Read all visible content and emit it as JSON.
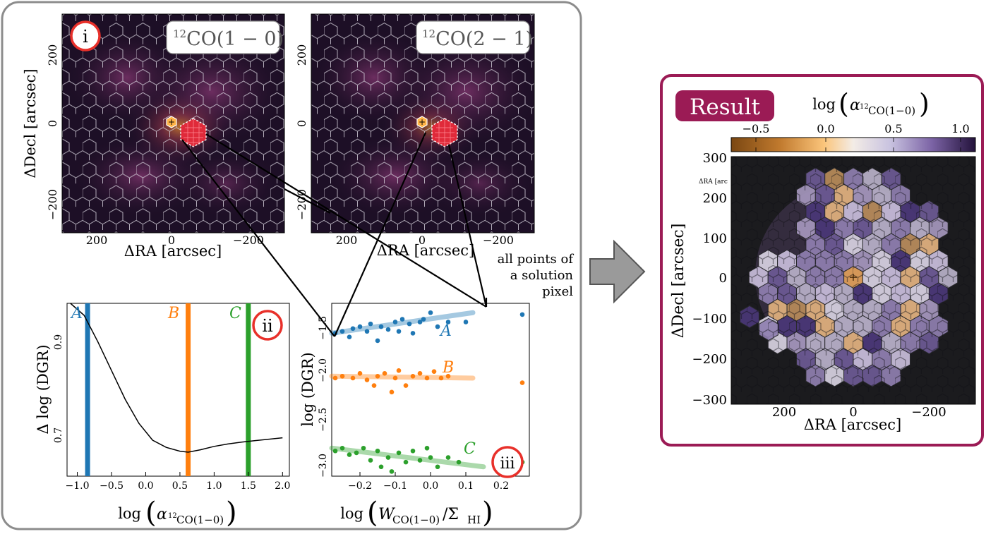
{
  "panels": {
    "co10": {
      "badge": "i",
      "label_sup": "12",
      "label_main": "CO(1 − 0)",
      "xlabel": "ΔRA [arcsec]",
      "ylabel": "ΔDecl [arcsec]",
      "xticks": [
        "200",
        "0",
        "−200"
      ],
      "yticks": [
        "200",
        "0",
        "−200"
      ]
    },
    "co21": {
      "label_sup": "12",
      "label_main": "CO(2 − 1)",
      "xlabel": "ΔRA [arcsec]",
      "xticks": [
        "200",
        "0",
        "−200"
      ],
      "yticks": [
        "200",
        "0",
        "−200"
      ]
    },
    "dgr_curve": {
      "badge": "ii",
      "ylabel": "Δ log (DGR)",
      "xlabel_pre": "log",
      "xlabel_sym": "α",
      "xlabel_sub_sup": "12",
      "xlabel_sub": "CO(1−0)",
      "xticks": [
        "−1.0",
        "−0.5",
        "0.0",
        "0.5",
        "1.0",
        "1.5",
        "2.0"
      ],
      "yticks": [
        "0.9",
        "0.7"
      ],
      "markers": [
        {
          "name": "A",
          "x": -0.85,
          "color": "#1f77b4"
        },
        {
          "name": "B",
          "x": 0.62,
          "color": "#ff7f0e"
        },
        {
          "name": "C",
          "x": 1.5,
          "color": "#2ca02c"
        }
      ]
    },
    "dgr_scatter": {
      "badge": "iii",
      "ylabel": "log (DGR)",
      "xlabel_pre": "log",
      "xlabel_w": "W",
      "xlabel_wsub": "CO(1−0)",
      "xlabel_slash": "/Σ",
      "xlabel_sigsub": "HI",
      "xticks": [
        "−0.2",
        "−0.1",
        "0.0",
        "0.1",
        "0.2"
      ],
      "yticks": [
        "−1.5",
        "−2.0",
        "−2.5",
        "−3.0"
      ],
      "annotation": [
        "all points of",
        "a solution",
        "pixel"
      ]
    },
    "result": {
      "title": "Result",
      "cbar_label_pre": "log",
      "cbar_label_sym": "α",
      "cbar_label_sup": "12",
      "cbar_label_sub": "CO(1−0)",
      "cbar_ticks": [
        "−0.5",
        "0.0",
        "0.5",
        "1.0"
      ],
      "xlabel": "ΔRA [arcsec]",
      "ylabel": "ΔDecl [arcsec]",
      "xticks": [
        "200",
        "0",
        "−200"
      ],
      "yticks": [
        "300",
        "200",
        "100",
        "0",
        "−100",
        "−200",
        "−300"
      ],
      "stray_label": "ΔRA [arc"
    }
  },
  "colors": {
    "frame_gray": "#8c8c8c",
    "result_frame": "#9b1b55",
    "badge_red": "#e8302a",
    "series_a": "#1f77b4",
    "series_b": "#ff7f0e",
    "series_c": "#2ca02c"
  },
  "chart_data": [
    {
      "type": "line",
      "panel": "ii",
      "x": [
        -1.1,
        -0.9,
        -0.7,
        -0.5,
        -0.3,
        -0.1,
        0.1,
        0.3,
        0.5,
        0.62,
        0.8,
        1.0,
        1.2,
        1.4,
        1.6,
        1.8,
        2.0
      ],
      "y": [
        0.96,
        0.935,
        0.88,
        0.82,
        0.76,
        0.71,
        0.675,
        0.66,
        0.652,
        0.65,
        0.655,
        0.662,
        0.667,
        0.671,
        0.674,
        0.677,
        0.68
      ],
      "xlim": [
        -1.15,
        2.1
      ],
      "ylim": [
        0.6,
        0.96
      ]
    },
    {
      "type": "scatter",
      "panel": "iii",
      "xlim": [
        -0.28,
        0.28
      ],
      "ylim": [
        -3.15,
        -1.3
      ],
      "series": [
        {
          "name": "A",
          "points": [
            [
              -0.27,
              -1.62
            ],
            [
              -0.25,
              -1.6
            ],
            [
              -0.23,
              -1.66
            ],
            [
              -0.22,
              -1.57
            ],
            [
              -0.2,
              -1.55
            ],
            [
              -0.18,
              -1.6
            ],
            [
              -0.17,
              -1.52
            ],
            [
              -0.15,
              -1.7
            ],
            [
              -0.14,
              -1.55
            ],
            [
              -0.12,
              -1.58
            ],
            [
              -0.1,
              -1.5
            ],
            [
              -0.09,
              -1.6
            ],
            [
              -0.08,
              -1.47
            ],
            [
              -0.06,
              -1.52
            ],
            [
              -0.05,
              -1.62
            ],
            [
              -0.03,
              -1.5
            ],
            [
              -0.02,
              -1.47
            ],
            [
              0.0,
              -1.4
            ],
            [
              0.02,
              -1.55
            ],
            [
              0.05,
              -1.5
            ],
            [
              0.1,
              -1.5
            ],
            [
              0.26,
              -1.42
            ]
          ],
          "fit": [
            [
              -0.28,
              -1.62
            ],
            [
              0.12,
              -1.4
            ]
          ]
        },
        {
          "name": "B",
          "points": [
            [
              -0.27,
              -2.1
            ],
            [
              -0.25,
              -2.08
            ],
            [
              -0.22,
              -2.1
            ],
            [
              -0.2,
              -2.05
            ],
            [
              -0.18,
              -2.12
            ],
            [
              -0.16,
              -2.18
            ],
            [
              -0.15,
              -2.08
            ],
            [
              -0.13,
              -2.05
            ],
            [
              -0.11,
              -2.25
            ],
            [
              -0.1,
              -2.1
            ],
            [
              -0.09,
              -2.02
            ],
            [
              -0.07,
              -2.18
            ],
            [
              -0.05,
              -2.08
            ],
            [
              -0.03,
              -2.05
            ],
            [
              -0.01,
              -2.1
            ],
            [
              0.01,
              -2.03
            ],
            [
              0.03,
              -2.1
            ],
            [
              0.05,
              -2.08
            ],
            [
              0.26,
              -2.15
            ]
          ],
          "fit": [
            [
              -0.28,
              -2.08
            ],
            [
              0.12,
              -2.1
            ]
          ]
        },
        {
          "name": "C",
          "points": [
            [
              -0.27,
              -2.88
            ],
            [
              -0.25,
              -2.85
            ],
            [
              -0.23,
              -2.92
            ],
            [
              -0.21,
              -2.9
            ],
            [
              -0.19,
              -2.85
            ],
            [
              -0.17,
              -2.98
            ],
            [
              -0.15,
              -2.88
            ],
            [
              -0.14,
              -3.05
            ],
            [
              -0.12,
              -2.95
            ],
            [
              -0.11,
              -3.1
            ],
            [
              -0.09,
              -2.9
            ],
            [
              -0.07,
              -3.0
            ],
            [
              -0.05,
              -2.88
            ],
            [
              -0.03,
              -2.98
            ],
            [
              -0.01,
              -2.85
            ],
            [
              0.0,
              -2.95
            ],
            [
              0.02,
              -3.05
            ],
            [
              0.05,
              -2.95
            ],
            [
              0.08,
              -3.0
            ],
            [
              0.26,
              -3.0
            ]
          ],
          "fit": [
            [
              -0.28,
              -2.85
            ],
            [
              0.15,
              -3.05
            ]
          ]
        }
      ]
    },
    {
      "type": "heatmap",
      "panel": "result",
      "colorbar_range": [
        -0.8,
        1.3
      ],
      "xlim": [
        300,
        -300
      ],
      "ylim": [
        -300,
        300
      ]
    }
  ]
}
